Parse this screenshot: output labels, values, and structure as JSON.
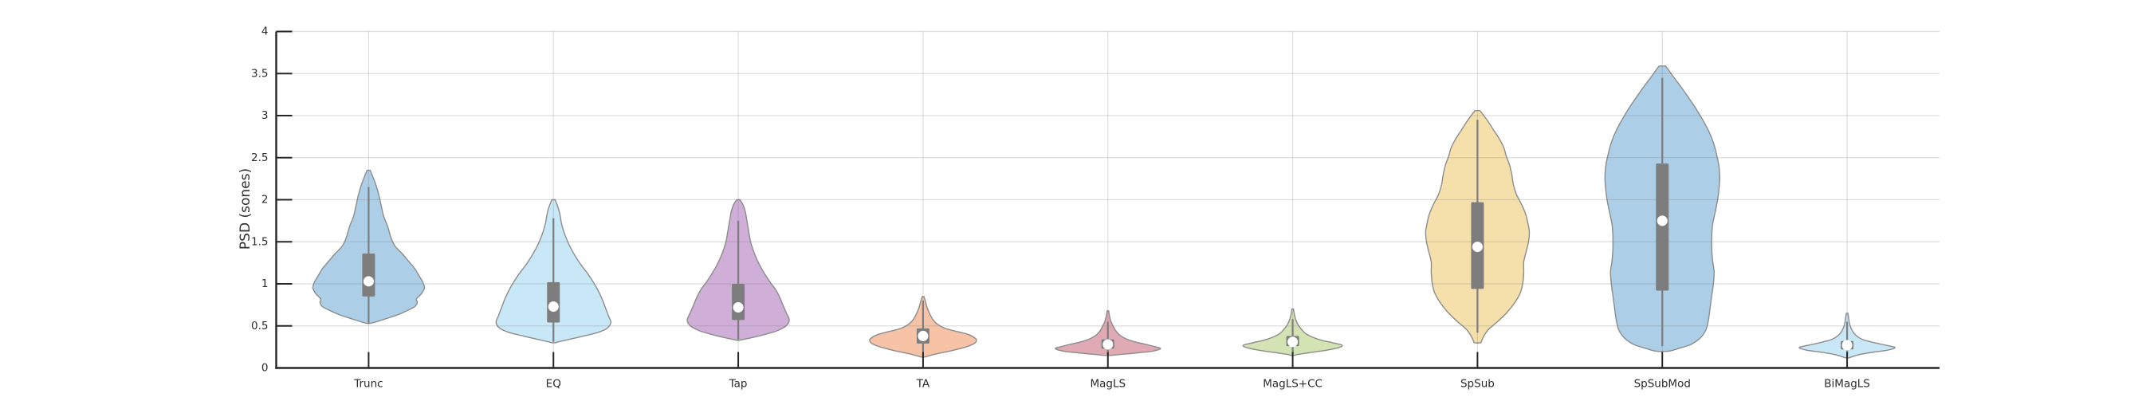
{
  "chart_data": {
    "type": "violin",
    "title": "",
    "xlabel": "",
    "ylabel": "PSD (sones)",
    "ylim": [
      0,
      4
    ],
    "yticks": [
      0,
      0.5,
      1,
      1.5,
      2,
      2.5,
      3,
      3.5,
      4
    ],
    "ytick_labels": [
      "0",
      "0.5",
      "1",
      "1.5",
      "2",
      "2.5",
      "3",
      "3.5",
      "4"
    ],
    "grid": "horizontal gridlines at each 0.5 step and vertical gridline at each category center",
    "legend": "none",
    "categories": [
      "Trunc",
      "EQ",
      "Tap",
      "TA",
      "MagLS",
      "MagLS+CC",
      "SpSub",
      "SpSubMod",
      "BiMagLS"
    ],
    "series": [
      {
        "label": "Trunc",
        "color": "#adcee7",
        "min": 0.53,
        "max": 2.35,
        "q1": 0.85,
        "median": 1.03,
        "q3": 1.36,
        "whisker_low": 0.53,
        "whisker_high": 2.15,
        "profile": [
          [
            2.35,
            2
          ],
          [
            2.28,
            5
          ],
          [
            2.18,
            9
          ],
          [
            2.05,
            13
          ],
          [
            1.92,
            16
          ],
          [
            1.8,
            19
          ],
          [
            1.68,
            24
          ],
          [
            1.55,
            28
          ],
          [
            1.45,
            33
          ],
          [
            1.36,
            42
          ],
          [
            1.27,
            50
          ],
          [
            1.18,
            58
          ],
          [
            1.1,
            63
          ],
          [
            1.02,
            68
          ],
          [
            0.95,
            70
          ],
          [
            0.88,
            66
          ],
          [
            0.82,
            60
          ],
          [
            0.78,
            61
          ],
          [
            0.73,
            58
          ],
          [
            0.68,
            48
          ],
          [
            0.63,
            36
          ],
          [
            0.58,
            20
          ],
          [
            0.55,
            10
          ],
          [
            0.53,
            2
          ]
        ]
      },
      {
        "label": "EQ",
        "color": "#c9e8f7",
        "min": 0.3,
        "max": 2.0,
        "q1": 0.54,
        "median": 0.73,
        "q3": 1.02,
        "whisker_low": 0.31,
        "whisker_high": 1.78,
        "profile": [
          [
            2.0,
            2
          ],
          [
            1.93,
            5
          ],
          [
            1.83,
            8
          ],
          [
            1.72,
            10
          ],
          [
            1.62,
            13
          ],
          [
            1.52,
            17
          ],
          [
            1.42,
            22
          ],
          [
            1.32,
            28
          ],
          [
            1.22,
            35
          ],
          [
            1.12,
            43
          ],
          [
            1.02,
            50
          ],
          [
            0.92,
            56
          ],
          [
            0.82,
            61
          ],
          [
            0.72,
            65
          ],
          [
            0.62,
            69
          ],
          [
            0.54,
            72
          ],
          [
            0.47,
            67
          ],
          [
            0.42,
            55
          ],
          [
            0.38,
            38
          ],
          [
            0.34,
            20
          ],
          [
            0.31,
            6
          ],
          [
            0.3,
            2
          ]
        ]
      },
      {
        "label": "Tap",
        "color": "#cfaed8",
        "min": 0.33,
        "max": 2.0,
        "q1": 0.57,
        "median": 0.72,
        "q3": 1.0,
        "whisker_low": 0.34,
        "whisker_high": 1.75,
        "profile": [
          [
            2.0,
            2
          ],
          [
            1.94,
            6
          ],
          [
            1.85,
            9
          ],
          [
            1.74,
            11
          ],
          [
            1.63,
            13
          ],
          [
            1.52,
            15
          ],
          [
            1.42,
            18
          ],
          [
            1.32,
            22
          ],
          [
            1.22,
            27
          ],
          [
            1.12,
            33
          ],
          [
            1.02,
            40
          ],
          [
            0.93,
            47
          ],
          [
            0.84,
            52
          ],
          [
            0.75,
            56
          ],
          [
            0.66,
            60
          ],
          [
            0.57,
            64
          ],
          [
            0.5,
            60
          ],
          [
            0.44,
            48
          ],
          [
            0.39,
            30
          ],
          [
            0.35,
            12
          ],
          [
            0.33,
            2
          ]
        ]
      },
      {
        "label": "TA",
        "color": "#f7c3a6",
        "min": 0.13,
        "max": 0.85,
        "q1": 0.29,
        "median": 0.38,
        "q3": 0.47,
        "whisker_low": 0.14,
        "whisker_high": 0.8,
        "profile": [
          [
            0.85,
            1
          ],
          [
            0.79,
            3
          ],
          [
            0.72,
            5
          ],
          [
            0.65,
            8
          ],
          [
            0.58,
            12
          ],
          [
            0.52,
            18
          ],
          [
            0.47,
            28
          ],
          [
            0.43,
            44
          ],
          [
            0.4,
            56
          ],
          [
            0.37,
            63
          ],
          [
            0.33,
            67
          ],
          [
            0.29,
            64
          ],
          [
            0.25,
            54
          ],
          [
            0.21,
            38
          ],
          [
            0.17,
            18
          ],
          [
            0.14,
            6
          ],
          [
            0.13,
            2
          ]
        ]
      },
      {
        "label": "MagLS",
        "color": "#e0aab4",
        "min": 0.15,
        "max": 0.68,
        "q1": 0.23,
        "median": 0.28,
        "q3": 0.34,
        "whisker_low": 0.16,
        "whisker_high": 0.55,
        "profile": [
          [
            0.68,
            1
          ],
          [
            0.62,
            2
          ],
          [
            0.55,
            4
          ],
          [
            0.49,
            7
          ],
          [
            0.44,
            10
          ],
          [
            0.39,
            15
          ],
          [
            0.35,
            22
          ],
          [
            0.31,
            34
          ],
          [
            0.28,
            48
          ],
          [
            0.25,
            60
          ],
          [
            0.23,
            66
          ],
          [
            0.2,
            56
          ],
          [
            0.18,
            38
          ],
          [
            0.16,
            16
          ],
          [
            0.15,
            4
          ]
        ]
      },
      {
        "label": "MagLS+CC",
        "color": "#d3e3b3",
        "min": 0.15,
        "max": 0.7,
        "q1": 0.26,
        "median": 0.31,
        "q3": 0.38,
        "whisker_low": 0.16,
        "whisker_high": 0.58,
        "profile": [
          [
            0.7,
            1
          ],
          [
            0.64,
            2
          ],
          [
            0.57,
            4
          ],
          [
            0.51,
            7
          ],
          [
            0.46,
            11
          ],
          [
            0.41,
            16
          ],
          [
            0.37,
            24
          ],
          [
            0.33,
            36
          ],
          [
            0.3,
            50
          ],
          [
            0.27,
            62
          ],
          [
            0.24,
            57
          ],
          [
            0.21,
            42
          ],
          [
            0.18,
            20
          ],
          [
            0.16,
            6
          ],
          [
            0.15,
            2
          ]
        ]
      },
      {
        "label": "SpSub",
        "color": "#f5e0ac",
        "min": 0.3,
        "max": 3.06,
        "q1": 0.94,
        "median": 1.44,
        "q3": 1.97,
        "whisker_low": 0.42,
        "whisker_high": 2.95,
        "profile": [
          [
            3.06,
            3
          ],
          [
            3.0,
            8
          ],
          [
            2.92,
            14
          ],
          [
            2.83,
            20
          ],
          [
            2.73,
            27
          ],
          [
            2.62,
            33
          ],
          [
            2.52,
            36
          ],
          [
            2.42,
            40
          ],
          [
            2.3,
            43
          ],
          [
            2.18,
            45
          ],
          [
            2.06,
            49
          ],
          [
            1.95,
            55
          ],
          [
            1.84,
            60
          ],
          [
            1.73,
            63
          ],
          [
            1.62,
            65
          ],
          [
            1.5,
            64
          ],
          [
            1.38,
            61
          ],
          [
            1.26,
            58
          ],
          [
            1.14,
            58
          ],
          [
            1.02,
            57
          ],
          [
            0.9,
            54
          ],
          [
            0.78,
            47
          ],
          [
            0.66,
            37
          ],
          [
            0.55,
            25
          ],
          [
            0.46,
            14
          ],
          [
            0.38,
            8
          ],
          [
            0.32,
            5
          ],
          [
            0.3,
            4
          ]
        ]
      },
      {
        "label": "SpSubMod",
        "color": "#adcee7",
        "min": 0.2,
        "max": 3.59,
        "q1": 0.92,
        "median": 1.75,
        "q3": 2.43,
        "whisker_low": 0.26,
        "whisker_high": 3.45,
        "profile": [
          [
            3.59,
            4
          ],
          [
            3.54,
            8
          ],
          [
            3.46,
            14
          ],
          [
            3.36,
            22
          ],
          [
            3.24,
            31
          ],
          [
            3.1,
            41
          ],
          [
            2.96,
            50
          ],
          [
            2.82,
            58
          ],
          [
            2.68,
            64
          ],
          [
            2.54,
            68
          ],
          [
            2.4,
            71
          ],
          [
            2.26,
            72
          ],
          [
            2.12,
            71
          ],
          [
            1.98,
            69
          ],
          [
            1.84,
            66
          ],
          [
            1.7,
            63
          ],
          [
            1.56,
            62
          ],
          [
            1.42,
            62
          ],
          [
            1.28,
            63
          ],
          [
            1.14,
            65
          ],
          [
            1.0,
            64
          ],
          [
            0.86,
            62
          ],
          [
            0.72,
            60
          ],
          [
            0.58,
            58
          ],
          [
            0.46,
            55
          ],
          [
            0.36,
            48
          ],
          [
            0.28,
            36
          ],
          [
            0.23,
            20
          ],
          [
            0.2,
            8
          ]
        ]
      },
      {
        "label": "BiMagLS",
        "color": "#c9e8f7",
        "min": 0.12,
        "max": 0.65,
        "q1": 0.22,
        "median": 0.27,
        "q3": 0.32,
        "whisker_low": 0.14,
        "whisker_high": 0.55,
        "profile": [
          [
            0.65,
            1
          ],
          [
            0.59,
            2
          ],
          [
            0.53,
            3
          ],
          [
            0.47,
            5
          ],
          [
            0.42,
            8
          ],
          [
            0.38,
            12
          ],
          [
            0.34,
            19
          ],
          [
            0.31,
            30
          ],
          [
            0.28,
            44
          ],
          [
            0.26,
            54
          ],
          [
            0.24,
            60
          ],
          [
            0.21,
            50
          ],
          [
            0.19,
            34
          ],
          [
            0.16,
            16
          ],
          [
            0.13,
            5
          ],
          [
            0.12,
            2
          ]
        ]
      }
    ]
  },
  "style": {
    "background": "#ffffff",
    "violin_outline": "#8c8c8c",
    "box_fill": "#7d7d7d",
    "median_dot_fill": "#ffffff",
    "spine_color": "#262626",
    "grid_color": "#7a7a7a",
    "tick_label_color": "#2b2b2b"
  }
}
